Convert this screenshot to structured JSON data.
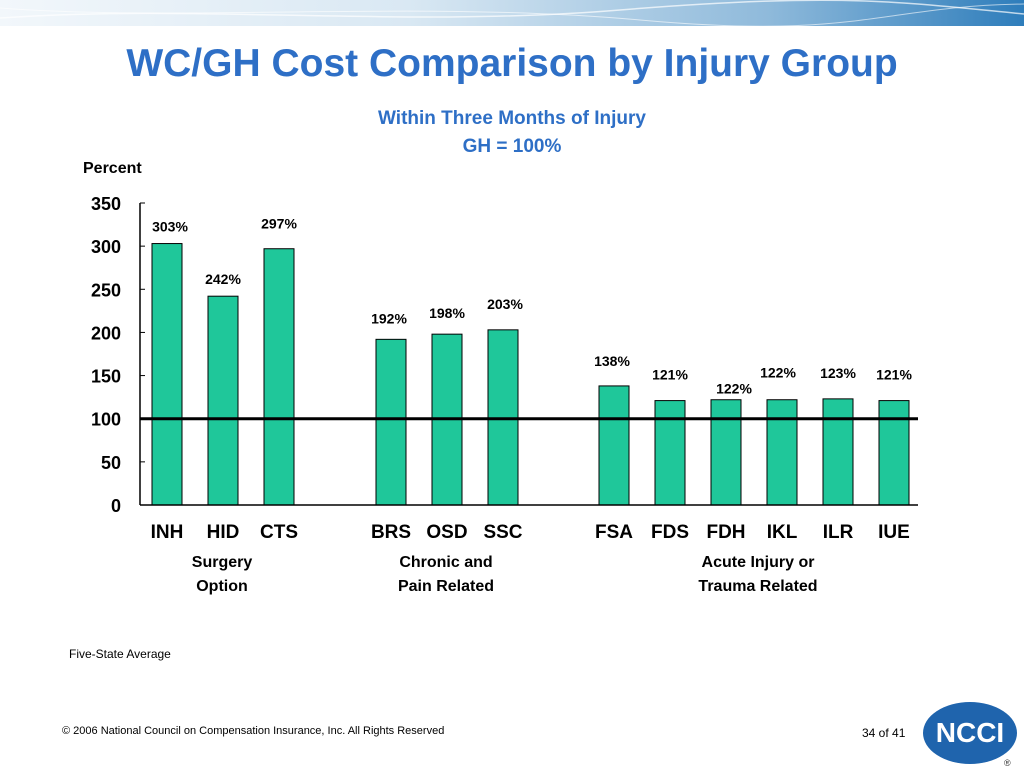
{
  "slide": {
    "title": "WC/GH Cost Comparison by Injury Group",
    "subtitle_line1": "Within Three Months of Injury",
    "subtitle_line2": "GH = 100%",
    "footnote": "Five-State Average",
    "copyright": "© 2006 National Council on Compensation Insurance, Inc. All Rights Reserved",
    "page": "34 of 41",
    "logo_text": "NCCI",
    "logo_mark": "®"
  },
  "chart_data": {
    "type": "bar",
    "ylabel": "Percent",
    "ylim": [
      0,
      350
    ],
    "yticks": [
      0,
      50,
      100,
      150,
      200,
      250,
      300,
      350
    ],
    "reference_line": 100,
    "bar_color": "#1fc79a",
    "categories": [
      "INH",
      "HID",
      "CTS",
      "BRS",
      "OSD",
      "SSC",
      "FSA",
      "FDS",
      "FDH",
      "IKL",
      "ILR",
      "IUE"
    ],
    "values": [
      303,
      242,
      297,
      192,
      198,
      203,
      138,
      121,
      122,
      122,
      123,
      121
    ],
    "data_labels": [
      "303%",
      "242%",
      "297%",
      "192%",
      "198%",
      "203%",
      "138%",
      "121%",
      "122%",
      "122%",
      "123%",
      "121%"
    ],
    "groups": [
      {
        "line1": "Surgery",
        "line2": "Option"
      },
      {
        "line1": "Chronic and",
        "line2": "Pain Related"
      },
      {
        "line1": "Acute Injury or",
        "line2": "Trauma Related"
      }
    ]
  }
}
